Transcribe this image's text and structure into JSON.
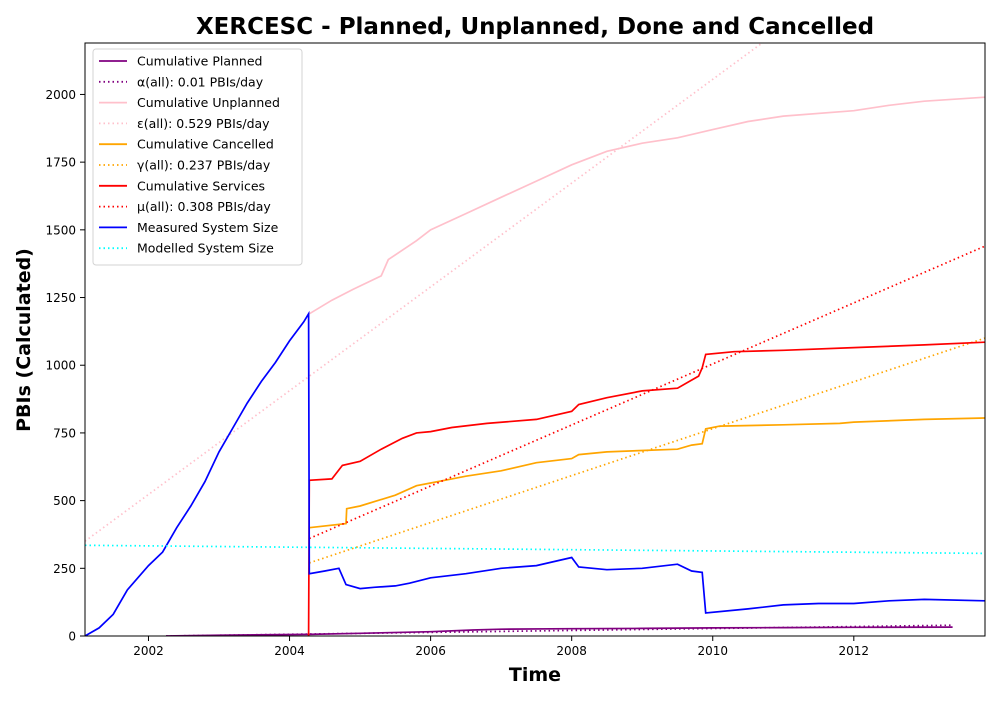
{
  "chart_data": {
    "type": "line",
    "title": "XERCESC - Planned, Unplanned, Done  and Cancelled",
    "xlabel": "Time",
    "ylabel": "PBIs (Calculated)",
    "xlim": [
      2001.1,
      2013.86
    ],
    "ylim": [
      0,
      2190
    ],
    "x_ticks": [
      2002,
      2004,
      2006,
      2008,
      2010,
      2012
    ],
    "y_ticks": [
      0,
      250,
      500,
      750,
      1000,
      1250,
      1500,
      1750,
      2000
    ],
    "grid": false,
    "legend_position": "top-left",
    "series": [
      {
        "name": "Cumulative Planned",
        "color": "#800080",
        "style": "solid",
        "points": [
          [
            2002.25,
            0
          ],
          [
            2003,
            3
          ],
          [
            2004.27,
            6
          ],
          [
            2005,
            10
          ],
          [
            2006,
            16
          ],
          [
            2006.6,
            22
          ],
          [
            2007,
            25
          ],
          [
            2008,
            27
          ],
          [
            2009,
            28
          ],
          [
            2010,
            30
          ],
          [
            2011,
            31
          ],
          [
            2012,
            32
          ],
          [
            2013.4,
            33
          ]
        ]
      },
      {
        "name": "α(all): 0.01 PBIs/day",
        "color": "#800080",
        "style": "dotted",
        "points": [
          [
            2002.25,
            0
          ],
          [
            2013.4,
            40
          ]
        ]
      },
      {
        "name": "Cumulative Unplanned",
        "color": "#ffc0cb",
        "style": "solid",
        "points": [
          [
            2004.28,
            1190
          ],
          [
            2004.6,
            1240
          ],
          [
            2004.9,
            1280
          ],
          [
            2005.3,
            1330
          ],
          [
            2005.4,
            1390
          ],
          [
            2005.8,
            1460
          ],
          [
            2006,
            1500
          ],
          [
            2006.5,
            1560
          ],
          [
            2007,
            1620
          ],
          [
            2007.5,
            1680
          ],
          [
            2008,
            1740
          ],
          [
            2008.5,
            1790
          ],
          [
            2009,
            1820
          ],
          [
            2009.5,
            1840
          ],
          [
            2010,
            1870
          ],
          [
            2010.5,
            1900
          ],
          [
            2011,
            1920
          ],
          [
            2012,
            1940
          ],
          [
            2012.5,
            1960
          ],
          [
            2013,
            1975
          ],
          [
            2013.86,
            1990
          ]
        ]
      },
      {
        "name": "ε(all): 0.529 PBIs/day",
        "color": "#ffc0cb",
        "style": "dotted",
        "points": [
          [
            2001.1,
            350
          ],
          [
            2010.7,
            2190
          ]
        ]
      },
      {
        "name": "Cumulative Cancelled",
        "color": "#ffa500",
        "style": "solid",
        "points": [
          [
            2004.28,
            400
          ],
          [
            2004.8,
            415
          ],
          [
            2004.81,
            470
          ],
          [
            2005,
            480
          ],
          [
            2005.5,
            520
          ],
          [
            2005.8,
            555
          ],
          [
            2006,
            565
          ],
          [
            2006.3,
            580
          ],
          [
            2006.5,
            590
          ],
          [
            2007,
            610
          ],
          [
            2007.5,
            640
          ],
          [
            2008,
            655
          ],
          [
            2008.1,
            670
          ],
          [
            2008.5,
            680
          ],
          [
            2009,
            685
          ],
          [
            2009.5,
            690
          ],
          [
            2009.7,
            705
          ],
          [
            2009.85,
            710
          ],
          [
            2009.9,
            765
          ],
          [
            2010.1,
            775
          ],
          [
            2011,
            780
          ],
          [
            2011.8,
            785
          ],
          [
            2012,
            790
          ],
          [
            2013,
            800
          ],
          [
            2013.86,
            805
          ]
        ]
      },
      {
        "name": "γ(all): 0.237 PBIs/day",
        "color": "#ffa500",
        "style": "dotted",
        "points": [
          [
            2004.28,
            270
          ],
          [
            2013.86,
            1100
          ]
        ]
      },
      {
        "name": "Cumulative Services",
        "color": "#ff0000",
        "style": "solid",
        "points": [
          [
            2004.27,
            0
          ],
          [
            2004.28,
            575
          ],
          [
            2004.6,
            580
          ],
          [
            2004.75,
            630
          ],
          [
            2005,
            645
          ],
          [
            2005.3,
            690
          ],
          [
            2005.6,
            730
          ],
          [
            2005.8,
            750
          ],
          [
            2006,
            755
          ],
          [
            2006.3,
            770
          ],
          [
            2006.8,
            785
          ],
          [
            2007.5,
            800
          ],
          [
            2008,
            830
          ],
          [
            2008.1,
            855
          ],
          [
            2008.5,
            880
          ],
          [
            2009,
            905
          ],
          [
            2009.5,
            915
          ],
          [
            2009.8,
            960
          ],
          [
            2009.85,
            990
          ],
          [
            2009.9,
            1040
          ],
          [
            2010.3,
            1050
          ],
          [
            2011,
            1055
          ],
          [
            2012,
            1065
          ],
          [
            2013,
            1075
          ],
          [
            2013.86,
            1085
          ]
        ]
      },
      {
        "name": "μ(all): 0.308 PBIs/day",
        "color": "#ff0000",
        "style": "dotted",
        "points": [
          [
            2004.28,
            360
          ],
          [
            2013.86,
            1440
          ]
        ]
      },
      {
        "name": "Measured System Size",
        "color": "#0000ff",
        "style": "solid",
        "points": [
          [
            2001.1,
            0
          ],
          [
            2001.3,
            30
          ],
          [
            2001.5,
            80
          ],
          [
            2001.7,
            170
          ],
          [
            2002,
            260
          ],
          [
            2002.2,
            310
          ],
          [
            2002.4,
            400
          ],
          [
            2002.6,
            480
          ],
          [
            2002.8,
            570
          ],
          [
            2003,
            680
          ],
          [
            2003.2,
            770
          ],
          [
            2003.4,
            860
          ],
          [
            2003.6,
            940
          ],
          [
            2003.8,
            1010
          ],
          [
            2004,
            1090
          ],
          [
            2004.2,
            1160
          ],
          [
            2004.27,
            1190
          ],
          [
            2004.28,
            230
          ],
          [
            2004.5,
            240
          ],
          [
            2004.7,
            250
          ],
          [
            2004.8,
            190
          ],
          [
            2005,
            175
          ],
          [
            2005.2,
            180
          ],
          [
            2005.5,
            185
          ],
          [
            2005.7,
            195
          ],
          [
            2006,
            215
          ],
          [
            2006.5,
            230
          ],
          [
            2007,
            250
          ],
          [
            2007.5,
            260
          ],
          [
            2008,
            290
          ],
          [
            2008.1,
            255
          ],
          [
            2008.5,
            245
          ],
          [
            2009,
            250
          ],
          [
            2009.5,
            265
          ],
          [
            2009.7,
            240
          ],
          [
            2009.85,
            235
          ],
          [
            2009.9,
            85
          ],
          [
            2010.5,
            100
          ],
          [
            2011,
            115
          ],
          [
            2011.5,
            120
          ],
          [
            2012,
            120
          ],
          [
            2012.5,
            130
          ],
          [
            2013,
            135
          ],
          [
            2013.86,
            130
          ]
        ]
      },
      {
        "name": "Modelled System Size",
        "color": "#00ffff",
        "style": "dotted",
        "points": [
          [
            2001.1,
            335
          ],
          [
            2013.86,
            305
          ]
        ]
      }
    ]
  }
}
